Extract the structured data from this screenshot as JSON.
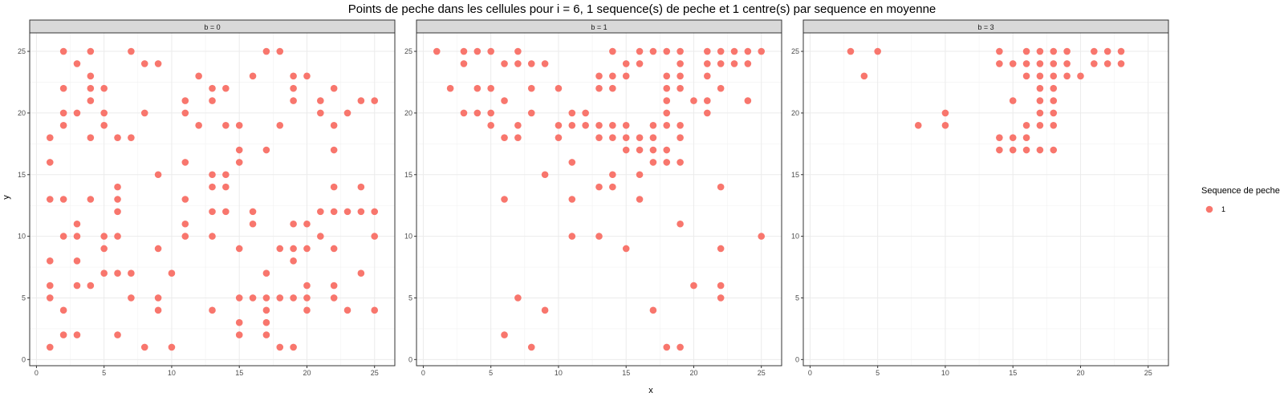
{
  "chart_data": {
    "type": "scatter",
    "title": "Points de peche dans les cellules pour i = 6, 1 sequence(s) de peche et 1 centre(s) par sequence en moyenne",
    "xlabel": "x",
    "ylabel": "y",
    "xlim": [
      -0.5,
      26.5
    ],
    "ylim": [
      -0.5,
      26.5
    ],
    "x_ticks": [
      0,
      5,
      10,
      15,
      20,
      25
    ],
    "y_ticks": [
      0,
      5,
      10,
      15,
      20,
      25
    ],
    "grid": true,
    "legend": {
      "title": "Sequence de peche",
      "placement": "right",
      "entries": [
        {
          "label": "1",
          "color": "#F8766D"
        }
      ]
    },
    "point_color": "#F8766D",
    "facets": [
      {
        "label": "b = 0",
        "points": [
          [
            1,
            18
          ],
          [
            1,
            16
          ],
          [
            1,
            13
          ],
          [
            1,
            8
          ],
          [
            1,
            6
          ],
          [
            1,
            5
          ],
          [
            1,
            1
          ],
          [
            2,
            25
          ],
          [
            2,
            22
          ],
          [
            2,
            20
          ],
          [
            2,
            19
          ],
          [
            2,
            13
          ],
          [
            2,
            10
          ],
          [
            2,
            4
          ],
          [
            2,
            2
          ],
          [
            3,
            24
          ],
          [
            3,
            20
          ],
          [
            3,
            11
          ],
          [
            3,
            10
          ],
          [
            3,
            8
          ],
          [
            3,
            6
          ],
          [
            3,
            2
          ],
          [
            4,
            25
          ],
          [
            4,
            23
          ],
          [
            4,
            22
          ],
          [
            4,
            21
          ],
          [
            4,
            18
          ],
          [
            4,
            13
          ],
          [
            4,
            6
          ],
          [
            5,
            22
          ],
          [
            5,
            20
          ],
          [
            5,
            19
          ],
          [
            5,
            10
          ],
          [
            5,
            9
          ],
          [
            5,
            7
          ],
          [
            6,
            18
          ],
          [
            6,
            14
          ],
          [
            6,
            13
          ],
          [
            6,
            12
          ],
          [
            6,
            10
          ],
          [
            6,
            7
          ],
          [
            6,
            2
          ],
          [
            7,
            25
          ],
          [
            7,
            18
          ],
          [
            7,
            7
          ],
          [
            7,
            5
          ],
          [
            8,
            24
          ],
          [
            8,
            20
          ],
          [
            8,
            1
          ],
          [
            9,
            24
          ],
          [
            9,
            15
          ],
          [
            9,
            9
          ],
          [
            9,
            5
          ],
          [
            9,
            4
          ],
          [
            10,
            7
          ],
          [
            10,
            1
          ],
          [
            11,
            21
          ],
          [
            11,
            20
          ],
          [
            11,
            16
          ],
          [
            11,
            13
          ],
          [
            11,
            11
          ],
          [
            11,
            10
          ],
          [
            12,
            23
          ],
          [
            12,
            19
          ],
          [
            13,
            22
          ],
          [
            13,
            21
          ],
          [
            13,
            15
          ],
          [
            13,
            14
          ],
          [
            13,
            12
          ],
          [
            13,
            10
          ],
          [
            13,
            4
          ],
          [
            14,
            22
          ],
          [
            14,
            19
          ],
          [
            14,
            15
          ],
          [
            14,
            14
          ],
          [
            14,
            12
          ],
          [
            15,
            19
          ],
          [
            15,
            17
          ],
          [
            15,
            16
          ],
          [
            15,
            9
          ],
          [
            15,
            5
          ],
          [
            15,
            3
          ],
          [
            15,
            2
          ],
          [
            16,
            23
          ],
          [
            16,
            12
          ],
          [
            16,
            11
          ],
          [
            16,
            5
          ],
          [
            17,
            25
          ],
          [
            17,
            17
          ],
          [
            17,
            7
          ],
          [
            17,
            5
          ],
          [
            17,
            4
          ],
          [
            17,
            3
          ],
          [
            17,
            2
          ],
          [
            18,
            25
          ],
          [
            18,
            19
          ],
          [
            18,
            9
          ],
          [
            18,
            5
          ],
          [
            18,
            1
          ],
          [
            19,
            23
          ],
          [
            19,
            22
          ],
          [
            19,
            21
          ],
          [
            19,
            11
          ],
          [
            19,
            9
          ],
          [
            19,
            8
          ],
          [
            19,
            5
          ],
          [
            19,
            1
          ],
          [
            20,
            23
          ],
          [
            20,
            11
          ],
          [
            20,
            9
          ],
          [
            20,
            6
          ],
          [
            20,
            5
          ],
          [
            20,
            4
          ],
          [
            21,
            21
          ],
          [
            21,
            20
          ],
          [
            21,
            12
          ],
          [
            21,
            10
          ],
          [
            22,
            22
          ],
          [
            22,
            19
          ],
          [
            22,
            17
          ],
          [
            22,
            14
          ],
          [
            22,
            12
          ],
          [
            22,
            9
          ],
          [
            22,
            6
          ],
          [
            22,
            5
          ],
          [
            23,
            20
          ],
          [
            23,
            12
          ],
          [
            23,
            4
          ],
          [
            24,
            21
          ],
          [
            24,
            14
          ],
          [
            24,
            12
          ],
          [
            24,
            7
          ],
          [
            25,
            21
          ],
          [
            25,
            12
          ],
          [
            25,
            10
          ],
          [
            25,
            4
          ]
        ]
      },
      {
        "label": "b = 1",
        "points": [
          [
            1,
            25
          ],
          [
            2,
            22
          ],
          [
            3,
            25
          ],
          [
            3,
            24
          ],
          [
            3,
            20
          ],
          [
            4,
            25
          ],
          [
            4,
            22
          ],
          [
            4,
            20
          ],
          [
            5,
            25
          ],
          [
            5,
            22
          ],
          [
            5,
            20
          ],
          [
            5,
            19
          ],
          [
            6,
            24
          ],
          [
            6,
            21
          ],
          [
            6,
            18
          ],
          [
            6,
            13
          ],
          [
            6,
            2
          ],
          [
            7,
            25
          ],
          [
            7,
            24
          ],
          [
            7,
            19
          ],
          [
            7,
            18
          ],
          [
            7,
            5
          ],
          [
            8,
            24
          ],
          [
            8,
            22
          ],
          [
            8,
            20
          ],
          [
            8,
            1
          ],
          [
            9,
            24
          ],
          [
            9,
            15
          ],
          [
            9,
            4
          ],
          [
            10,
            22
          ],
          [
            10,
            19
          ],
          [
            10,
            18
          ],
          [
            11,
            20
          ],
          [
            11,
            19
          ],
          [
            11,
            16
          ],
          [
            11,
            13
          ],
          [
            11,
            10
          ],
          [
            12,
            20
          ],
          [
            12,
            19
          ],
          [
            13,
            23
          ],
          [
            13,
            22
          ],
          [
            13,
            19
          ],
          [
            13,
            18
          ],
          [
            13,
            14
          ],
          [
            13,
            10
          ],
          [
            14,
            25
          ],
          [
            14,
            23
          ],
          [
            14,
            22
          ],
          [
            14,
            19
          ],
          [
            14,
            18
          ],
          [
            14,
            15
          ],
          [
            14,
            14
          ],
          [
            15,
            24
          ],
          [
            15,
            23
          ],
          [
            15,
            19
          ],
          [
            15,
            18
          ],
          [
            15,
            17
          ],
          [
            15,
            9
          ],
          [
            16,
            25
          ],
          [
            16,
            24
          ],
          [
            16,
            18
          ],
          [
            16,
            17
          ],
          [
            16,
            15
          ],
          [
            16,
            13
          ],
          [
            17,
            25
          ],
          [
            17,
            19
          ],
          [
            17,
            18
          ],
          [
            17,
            17
          ],
          [
            17,
            16
          ],
          [
            17,
            4
          ],
          [
            18,
            25
          ],
          [
            18,
            23
          ],
          [
            18,
            22
          ],
          [
            18,
            21
          ],
          [
            18,
            20
          ],
          [
            18,
            19
          ],
          [
            18,
            17
          ],
          [
            18,
            16
          ],
          [
            18,
            1
          ],
          [
            19,
            25
          ],
          [
            19,
            24
          ],
          [
            19,
            23
          ],
          [
            19,
            22
          ],
          [
            19,
            19
          ],
          [
            19,
            18
          ],
          [
            19,
            16
          ],
          [
            19,
            11
          ],
          [
            19,
            1
          ],
          [
            20,
            21
          ],
          [
            20,
            6
          ],
          [
            21,
            25
          ],
          [
            21,
            24
          ],
          [
            21,
            23
          ],
          [
            21,
            21
          ],
          [
            21,
            20
          ],
          [
            22,
            25
          ],
          [
            22,
            24
          ],
          [
            22,
            22
          ],
          [
            22,
            14
          ],
          [
            22,
            9
          ],
          [
            22,
            6
          ],
          [
            22,
            5
          ],
          [
            23,
            25
          ],
          [
            23,
            24
          ],
          [
            24,
            25
          ],
          [
            24,
            24
          ],
          [
            24,
            21
          ],
          [
            25,
            25
          ],
          [
            25,
            10
          ]
        ]
      },
      {
        "label": "b = 3",
        "points": [
          [
            3,
            25
          ],
          [
            4,
            23
          ],
          [
            5,
            25
          ],
          [
            8,
            19
          ],
          [
            10,
            20
          ],
          [
            10,
            19
          ],
          [
            14,
            25
          ],
          [
            14,
            24
          ],
          [
            14,
            18
          ],
          [
            14,
            17
          ],
          [
            15,
            24
          ],
          [
            15,
            21
          ],
          [
            15,
            18
          ],
          [
            15,
            17
          ],
          [
            16,
            25
          ],
          [
            16,
            24
          ],
          [
            16,
            23
          ],
          [
            16,
            19
          ],
          [
            16,
            18
          ],
          [
            16,
            17
          ],
          [
            17,
            25
          ],
          [
            17,
            24
          ],
          [
            17,
            23
          ],
          [
            17,
            22
          ],
          [
            17,
            21
          ],
          [
            17,
            20
          ],
          [
            17,
            19
          ],
          [
            17,
            17
          ],
          [
            18,
            25
          ],
          [
            18,
            24
          ],
          [
            18,
            23
          ],
          [
            18,
            22
          ],
          [
            18,
            21
          ],
          [
            18,
            20
          ],
          [
            18,
            19
          ],
          [
            18,
            17
          ],
          [
            19,
            25
          ],
          [
            19,
            24
          ],
          [
            19,
            23
          ],
          [
            20,
            23
          ],
          [
            21,
            25
          ],
          [
            21,
            24
          ],
          [
            22,
            25
          ],
          [
            22,
            24
          ],
          [
            23,
            25
          ],
          [
            23,
            24
          ]
        ]
      }
    ]
  }
}
